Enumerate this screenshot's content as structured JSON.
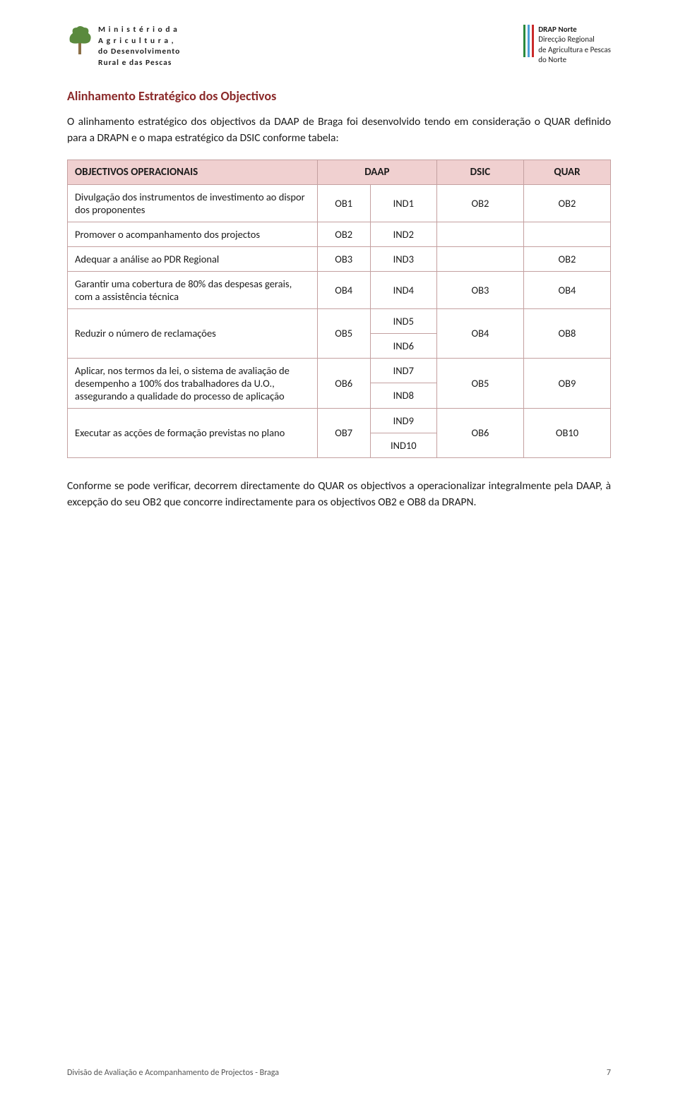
{
  "header": {
    "ministry_line1": "M i n i s t é r i o  d a",
    "ministry_line2": "A g r i c u l t u r a ,",
    "ministry_line3": "do Desenvolvimento",
    "ministry_line4": "Rural e das Pescas",
    "drap_bold": "DRAP Norte",
    "drap_line1": "Direcção Regional",
    "drap_line2": "de Agricultura e Pescas",
    "drap_line3": "do Norte",
    "bar_colors": [
      "#2b8a3e",
      "#4a9fd8",
      "#c92a2a"
    ],
    "tree_trunk_color": "#8b6f47",
    "tree_leaf_color": "#5a8a3e"
  },
  "section_title": "Alinhamento Estratégico dos Objectivos",
  "intro_para": "O alinhamento estratégico dos objectivos da DAAP de Braga foi desenvolvido tendo em consideração o QUAR definido para a DRAPN e o mapa estratégico da DSIC conforme tabela:",
  "table": {
    "header_bg": "#f0d0d0",
    "border_color": "#c4a0a0",
    "headers": [
      "OBJECTIVOS OPERACIONAIS",
      "DAAP",
      "",
      "DSIC",
      "QUAR"
    ],
    "rows": [
      {
        "label": "Divulgação dos instrumentos de investimento ao dispor dos proponentes",
        "daap": "OB1",
        "ind": [
          "IND1"
        ],
        "dsic": "OB2",
        "quar": "OB2"
      },
      {
        "label": "Promover o acompanhamento dos projectos",
        "daap": "OB2",
        "ind": [
          "IND2"
        ],
        "dsic": "",
        "quar": ""
      },
      {
        "label": "Adequar a análise ao PDR Regional",
        "daap": "OB3",
        "ind": [
          "IND3"
        ],
        "dsic": "",
        "quar": "OB2"
      },
      {
        "label": "Garantir uma cobertura de 80% das despesas gerais, com a assistência técnica",
        "daap": "OB4",
        "ind": [
          "IND4"
        ],
        "dsic": "OB3",
        "quar": "OB4"
      },
      {
        "label": "Reduzir o número de reclamações",
        "daap": "OB5",
        "ind": [
          "IND5",
          "IND6"
        ],
        "dsic": "OB4",
        "quar": "OB8"
      },
      {
        "label": "Aplicar, nos termos da lei, o sistema de avaliação de desempenho a 100% dos trabalhadores da U.O., assegurando a qualidade do processo de aplicação",
        "daap": "OB6",
        "ind": [
          "IND7",
          "IND8"
        ],
        "dsic": "OB5",
        "quar": "OB9"
      },
      {
        "label": "Executar as acções de formação previstas no plano",
        "daap": "OB7",
        "ind": [
          "IND9",
          "IND10"
        ],
        "dsic": "OB6",
        "quar": "OB10"
      }
    ]
  },
  "closing_para": "Conforme se pode verificar, decorrem directamente do QUAR os objectivos a operacionalizar integralmente pela DAAP, à excepção do seu OB2 que concorre indirectamente para os objectivos OB2 e OB8 da DRAPN.",
  "footer": {
    "left": "Divisão de Avaliação e Acompanhamento de Projectos - Braga",
    "page_num": "7"
  }
}
